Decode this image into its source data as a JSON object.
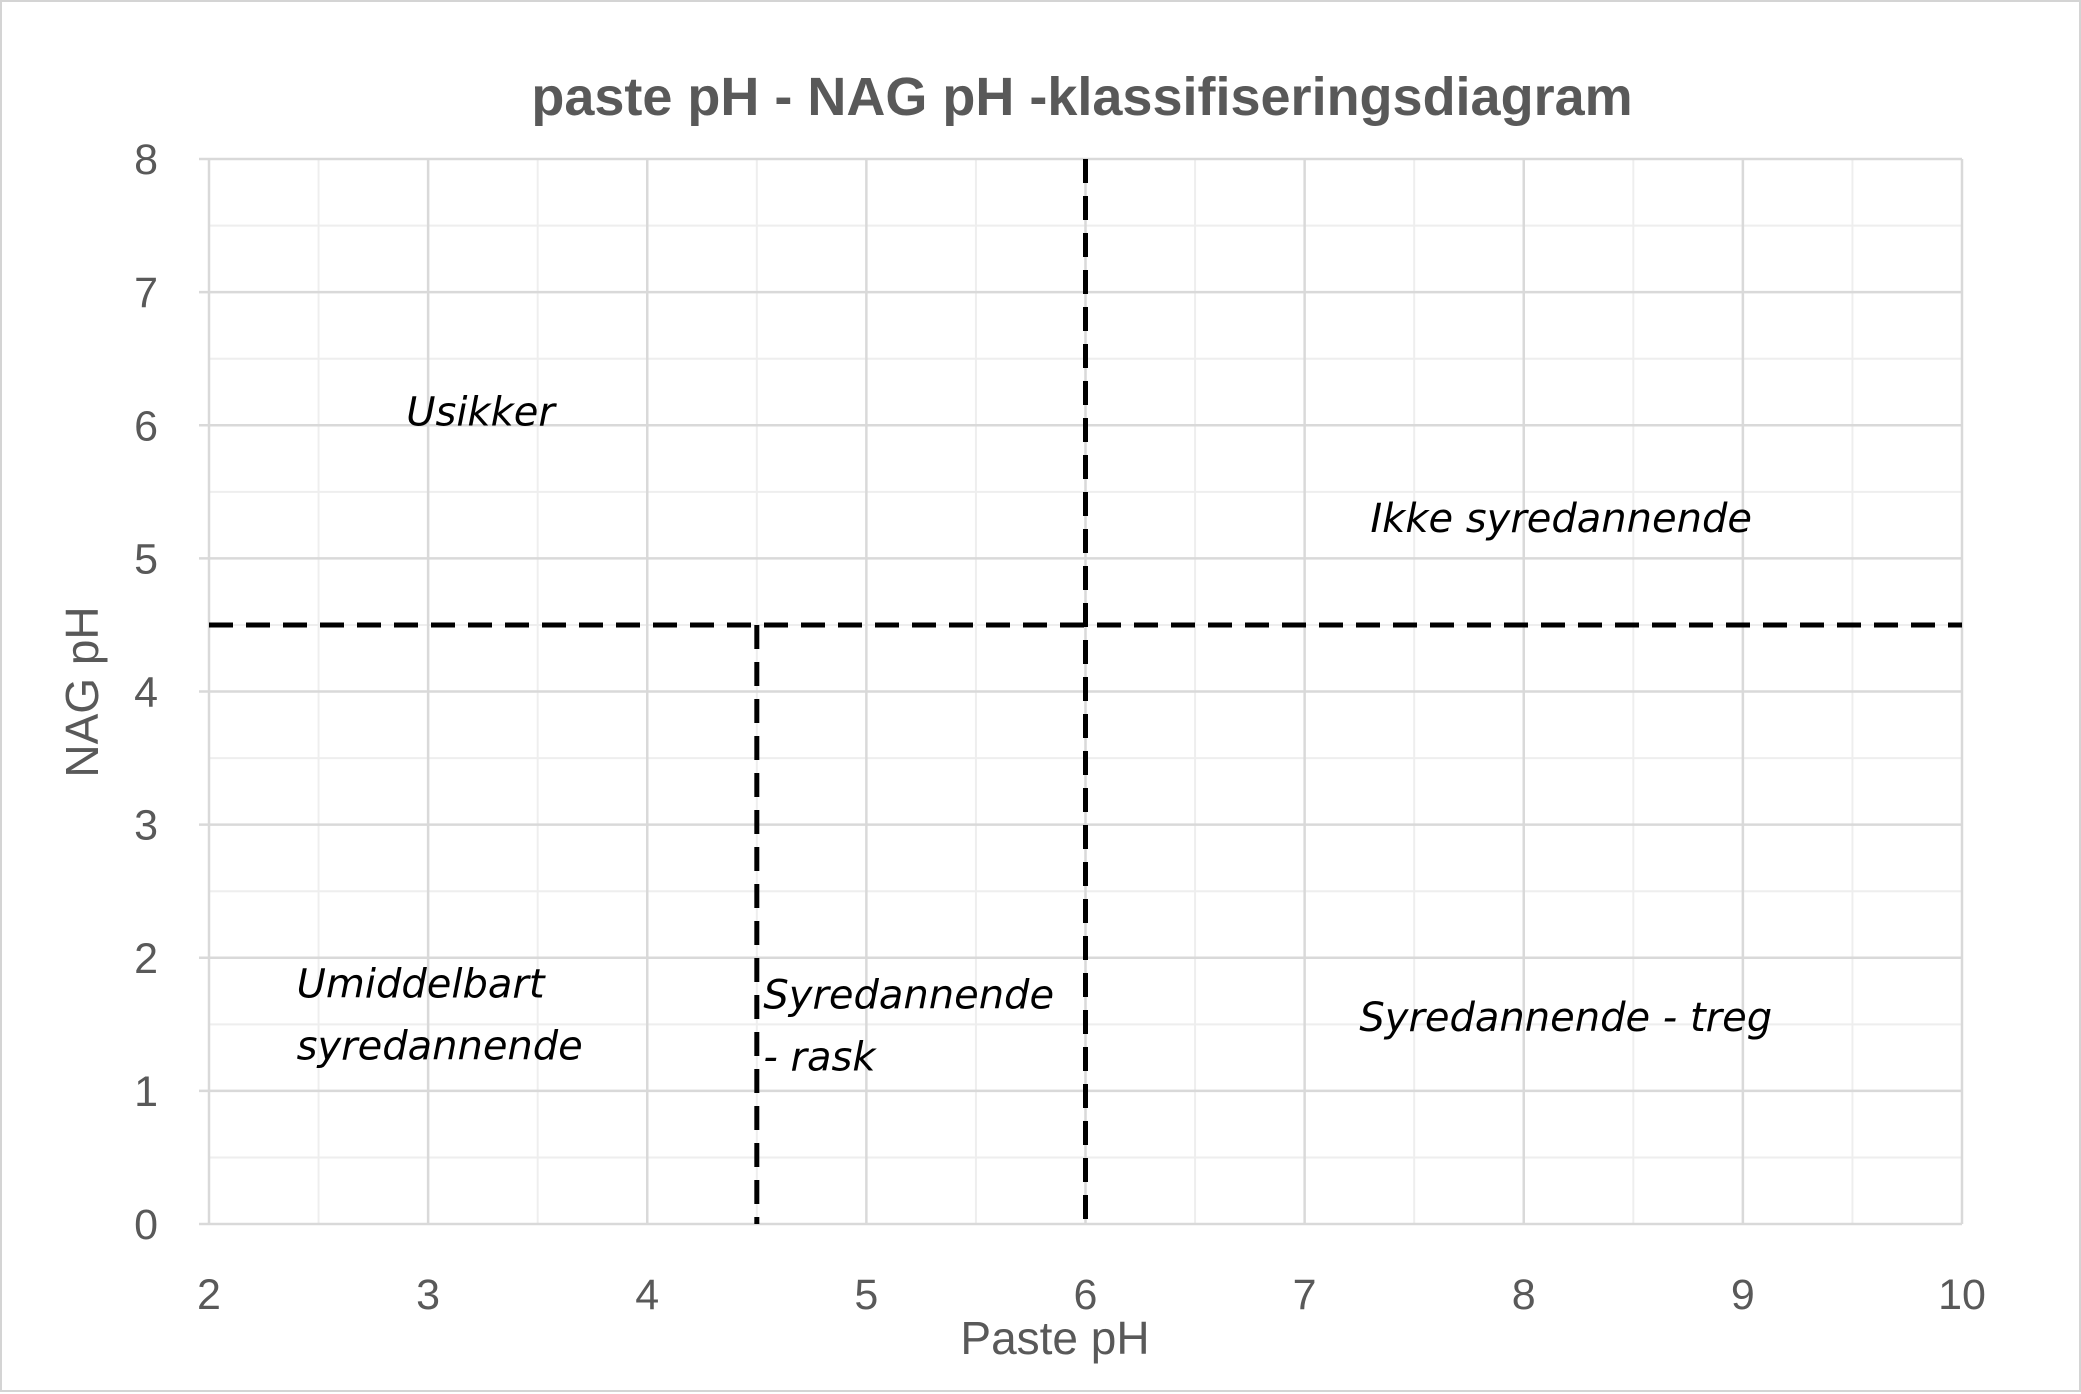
{
  "chart_data": {
    "type": "scatter",
    "title": "paste pH - NAG pH -klassifiseringsdiagram",
    "xlabel": "Paste pH",
    "ylabel": "NAG pH",
    "xlim": [
      2,
      10
    ],
    "ylim": [
      0,
      8
    ],
    "x_ticks": [
      2,
      3,
      4,
      5,
      6,
      7,
      8,
      9,
      10
    ],
    "y_ticks": [
      0,
      1,
      2,
      3,
      4,
      5,
      6,
      7,
      8
    ],
    "minor_step": 0.5,
    "grid": true,
    "legend": "none",
    "dividers": [
      {
        "orientation": "horizontal",
        "y": 4.5,
        "x_from": 2,
        "x_to": 10
      },
      {
        "orientation": "vertical",
        "x": 4.5,
        "y_from": 0,
        "y_to": 4.5
      },
      {
        "orientation": "vertical",
        "x": 6,
        "y_from": 0,
        "y_to": 8
      }
    ],
    "regions": [
      {
        "label": "Usikker",
        "lines": [
          "Usikker"
        ],
        "x": 2.9,
        "y": 6.0
      },
      {
        "label": "Ikke syredannende",
        "lines": [
          "Ikke syredannende"
        ],
        "x": 7.3,
        "y": 5.2
      },
      {
        "label": "Umiddelbart syredannende",
        "lines": [
          "Umiddelbart",
          "syredannende"
        ],
        "x": 2.4,
        "y": 1.7
      },
      {
        "label": "Syredannende - rask",
        "lines": [
          "Syredannende",
          "- rask"
        ],
        "x": 4.53,
        "y": 1.62
      },
      {
        "label": "Syredannende - treg",
        "lines": [
          "Syredannende - treg"
        ],
        "x": 7.25,
        "y": 1.45
      }
    ]
  }
}
